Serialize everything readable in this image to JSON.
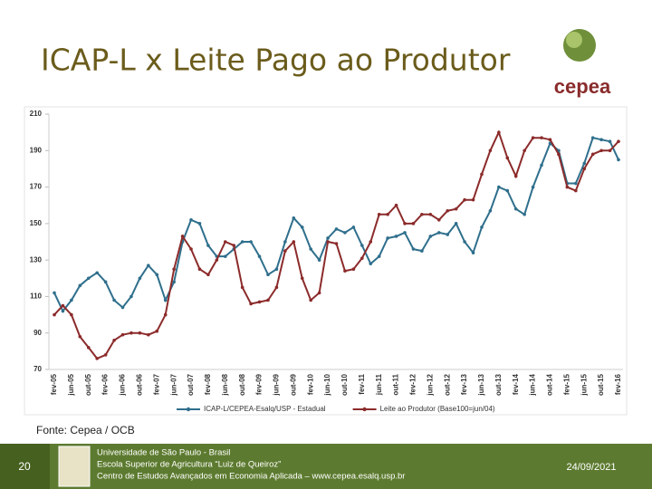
{
  "chart_data": {
    "type": "line",
    "title": "ICAP-L x Leite Pago ao Produtor",
    "categories": [
      "fev-05",
      null,
      "jun-05",
      null,
      "out-05",
      null,
      "fev-06",
      null,
      "jun-06",
      null,
      "out-06",
      null,
      "fev-07",
      null,
      "jun-07",
      null,
      "out-07",
      null,
      "fev-08",
      null,
      "jun-08",
      null,
      "out-08",
      null,
      "fev-09",
      null,
      "jun-09",
      null,
      "out-09",
      null,
      "fev-10",
      null,
      "jun-10",
      null,
      "out-10",
      null,
      "fev-11",
      null,
      "jun-11",
      null,
      "out-11",
      null,
      "fev-12",
      null,
      "jun-12",
      null,
      "out-12",
      null,
      "fev-13",
      null,
      "jun-13",
      null,
      "out-13",
      null,
      "fev-14",
      null,
      "jun-14",
      null,
      "out-14",
      null,
      "fev-15",
      null,
      "jun-15",
      null,
      "out-15",
      null,
      "fev-16"
    ],
    "series": [
      {
        "name": "ICAP-L/CEPEA-Esalq/USP - Estadual",
        "color": "#2f6f8c",
        "values": [
          112,
          102,
          108,
          116,
          120,
          123,
          118,
          108,
          104,
          110,
          120,
          127,
          122,
          108,
          118,
          140,
          152,
          150,
          138,
          132,
          132,
          136,
          140,
          140,
          132,
          122,
          125,
          140,
          153,
          148,
          136,
          130,
          142,
          147,
          145,
          148,
          138,
          128,
          132,
          142,
          143,
          145,
          136,
          135,
          143,
          145,
          144,
          150,
          140,
          134,
          148,
          157,
          170,
          168,
          158,
          155,
          170,
          182,
          194,
          190,
          172,
          172,
          183,
          197,
          196,
          195,
          185
        ]
      },
      {
        "name": "Leite ao Produtor (Base100=jun/04)",
        "color": "#8c2b2b",
        "values": [
          100,
          105,
          100,
          88,
          82,
          76,
          78,
          86,
          89,
          90,
          90,
          89,
          91,
          100,
          125,
          143,
          136,
          125,
          122,
          130,
          140,
          138,
          115,
          106,
          107,
          108,
          115,
          135,
          140,
          120,
          108,
          112,
          140,
          139,
          124,
          125,
          131,
          140,
          155,
          155,
          160,
          150,
          150,
          155,
          155,
          152,
          157,
          158,
          163,
          163,
          177,
          190,
          200,
          186,
          176,
          190,
          197,
          197,
          196,
          188,
          170,
          168,
          180,
          188,
          190,
          190,
          195
        ]
      }
    ],
    "ylim": [
      70,
      210
    ],
    "yticks": [
      70,
      90,
      110,
      130,
      150,
      170,
      190,
      210
    ],
    "grid": false,
    "legend": "bottom",
    "source": "Fonte: Cepea / OCB"
  },
  "footer": {
    "page": "20",
    "lines": [
      "Universidade de São Paulo - Brasil",
      "Escola Superior de Agricultura “Luiz de Queiroz”",
      "Centro de Estudos Avançados em Economia Aplicada – www.cepea.esalq.usp.br"
    ],
    "date": "24/09/2021"
  }
}
